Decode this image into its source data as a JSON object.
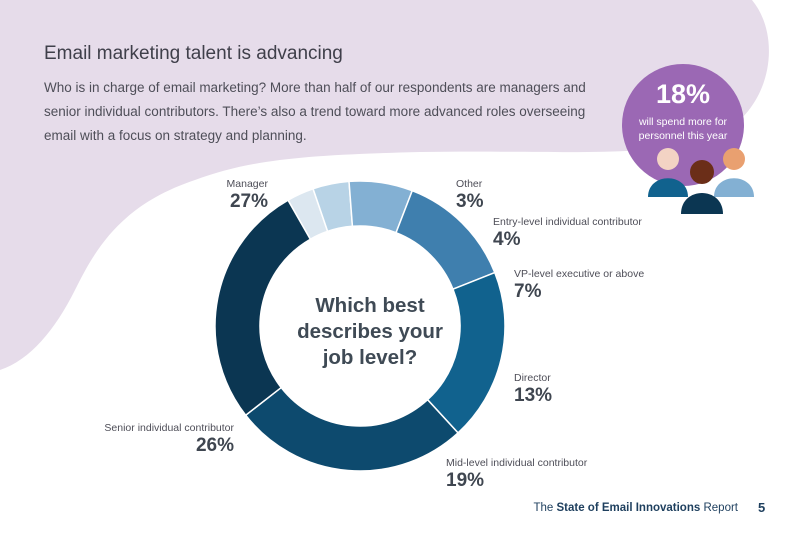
{
  "header": {
    "title": "Email marketing talent is advancing",
    "intro": "Who is in charge of email marketing? More than half of our respondents are managers and senior individual contributors. There’s also a trend toward more advanced roles overseeing email with a focus on strategy and planning."
  },
  "callout": {
    "value": "18%",
    "text": "will spend more for personnel this year"
  },
  "chart_data": {
    "type": "pie",
    "variant": "donut",
    "center_text": "Which best describes your job level?",
    "slices": [
      {
        "label": "Other",
        "value": 3,
        "pct": "3%",
        "color": "#dce7f0"
      },
      {
        "label": "Entry-level individual contributor",
        "value": 4,
        "pct": "4%",
        "color": "#b8d3e6"
      },
      {
        "label": "VP-level executive or above",
        "value": 7,
        "pct": "7%",
        "color": "#83b0d3"
      },
      {
        "label": "Director",
        "value": 13,
        "pct": "13%",
        "color": "#3f7fae"
      },
      {
        "label": "Mid-level individual contributor",
        "value": 19,
        "pct": "19%",
        "color": "#11628e"
      },
      {
        "label": "Senior individual contributor",
        "value": 26,
        "pct": "26%",
        "color": "#0d4a6e"
      },
      {
        "label": "Manager",
        "value": 27,
        "pct": "27%",
        "color": "#0b3652"
      }
    ]
  },
  "footer": {
    "prefix": "The",
    "report_name": "State of Email Innovations",
    "suffix": "Report",
    "page_number": "5"
  },
  "colors": {
    "background_blob": "#e6dcea",
    "accent_purple": "#9b68b4",
    "navy": "#1e3f5e"
  }
}
